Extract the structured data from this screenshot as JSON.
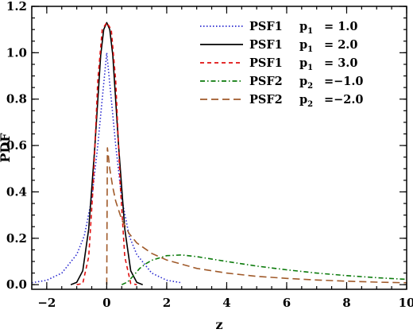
{
  "chart_data": {
    "type": "line",
    "xlabel": "z",
    "ylabel": "PDF",
    "xlim": [
      -2.5,
      10
    ],
    "ylim": [
      -0.02,
      1.2
    ],
    "x_ticks": [
      -2,
      0,
      2,
      4,
      6,
      8,
      10
    ],
    "y_ticks": [
      0.0,
      0.2,
      0.4,
      0.6,
      0.8,
      1.0,
      1.2
    ],
    "x_tick_labels": [
      "−2",
      "0",
      "2",
      "4",
      "6",
      "8",
      "10"
    ],
    "y_tick_labels": [
      "0.0",
      "0.2",
      "0.4",
      "0.6",
      "0.8",
      "1.0",
      "1.2"
    ],
    "legend_position": "top-right",
    "grid": false,
    "series": [
      {
        "name": "PSF1 p1 = 1.0",
        "legend": {
          "psf": "PSF1",
          "p": "p",
          "sub": "1",
          "val": "=  1.0"
        },
        "color": "#2a2ad0",
        "dash": "1.5 2.5",
        "x": [
          -2.5,
          -2.0,
          -1.5,
          -1.0,
          -0.75,
          -0.5,
          -0.3,
          -0.15,
          0,
          0.15,
          0.3,
          0.5,
          0.75,
          1.0,
          1.5,
          2.0,
          2.5
        ],
        "y": [
          0.008,
          0.019,
          0.05,
          0.13,
          0.21,
          0.37,
          0.6,
          0.8,
          1.0,
          0.8,
          0.6,
          0.37,
          0.21,
          0.13,
          0.05,
          0.019,
          0.008
        ]
      },
      {
        "name": "PSF1 p1 = 2.0",
        "legend": {
          "psf": "PSF1",
          "p": "p",
          "sub": "1",
          "val": "=  2.0"
        },
        "color": "#000000",
        "dash": "",
        "x": [
          -1.2,
          -1.0,
          -0.8,
          -0.6,
          -0.4,
          -0.2,
          -0.1,
          0,
          0.1,
          0.2,
          0.4,
          0.6,
          0.8,
          1.0,
          1.2
        ],
        "y": [
          0.0,
          0.01,
          0.06,
          0.24,
          0.59,
          0.99,
          1.1,
          1.13,
          1.1,
          0.99,
          0.59,
          0.24,
          0.06,
          0.01,
          0.0
        ]
      },
      {
        "name": "PSF1 p1 = 3.0",
        "legend": {
          "psf": "PSF1",
          "p": "p",
          "sub": "1",
          "val": "=  3.0"
        },
        "color": "#e01010",
        "dash": "5 4",
        "x": [
          -1.0,
          -0.8,
          -0.6,
          -0.45,
          -0.3,
          -0.15,
          0,
          0.15,
          0.3,
          0.45,
          0.6,
          0.8,
          1.0
        ],
        "y": [
          0.0,
          0.005,
          0.12,
          0.43,
          0.88,
          1.1,
          1.13,
          1.1,
          0.88,
          0.43,
          0.12,
          0.005,
          0.0
        ]
      },
      {
        "name": "PSF2 p2 = −1.0",
        "legend": {
          "psf": "PSF2",
          "p": "p",
          "sub": "2",
          "val": "=−1.0"
        },
        "color": "#0a7a0a",
        "dash": "6 3 1.5 3",
        "x": [
          0.5,
          0.7,
          0.9,
          1.1,
          1.3,
          1.5,
          2.0,
          2.5,
          3.0,
          4.0,
          5.0,
          6.0,
          7.0,
          8.0,
          9.0,
          10.0
        ],
        "y": [
          0.0,
          0.012,
          0.04,
          0.07,
          0.09,
          0.105,
          0.125,
          0.128,
          0.121,
          0.1,
          0.08,
          0.064,
          0.05,
          0.039,
          0.03,
          0.023
        ]
      },
      {
        "name": "PSF2 p2 = −2.0",
        "legend": {
          "psf": "PSF2",
          "p": "p",
          "sub": "2",
          "val": "=−2.0"
        },
        "color": "#a05a2a",
        "dash": "9 5",
        "x": [
          0.0,
          0.02,
          0.05,
          0.1,
          0.2,
          0.3,
          0.5,
          0.75,
          1.0,
          1.5,
          2.0,
          3.0,
          4.0,
          5.0,
          6.0,
          7.0,
          8.0,
          9.0,
          10.0
        ],
        "y": [
          0.0,
          0.59,
          0.56,
          0.5,
          0.42,
          0.36,
          0.28,
          0.22,
          0.18,
          0.135,
          0.106,
          0.07,
          0.05,
          0.036,
          0.027,
          0.02,
          0.015,
          0.011,
          0.008
        ]
      }
    ]
  }
}
